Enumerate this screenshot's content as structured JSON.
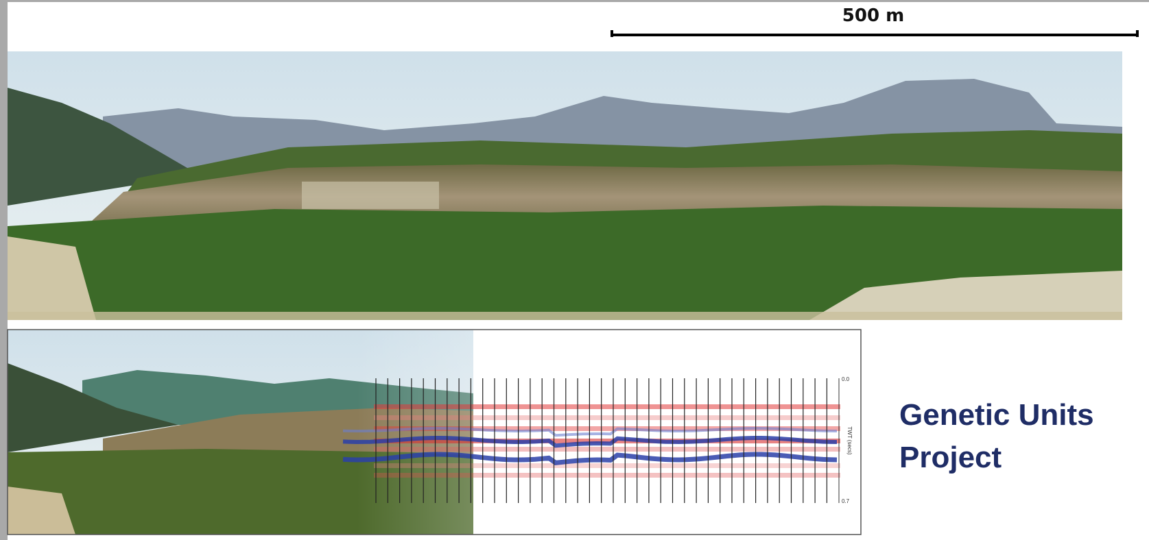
{
  "scale_bar": {
    "label": "500 m"
  },
  "seismic": {
    "axis_label": "TWT (secs)",
    "top_label": "0.0",
    "bottom_label": "0.7"
  },
  "caption": {
    "line1": "Genetic Units",
    "line2": "Project"
  }
}
